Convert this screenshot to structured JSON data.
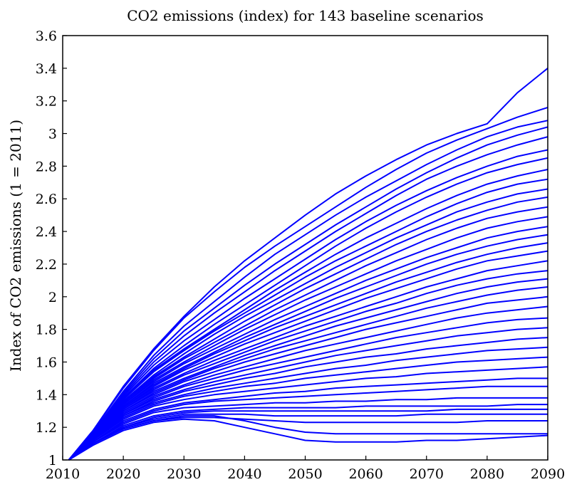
{
  "chart_data": {
    "type": "line",
    "title": "CO2 emissions (index) for 143 baseline scenarios",
    "xlabel": "",
    "ylabel": "Index of CO2 emissions (1 = 2011)",
    "xlim": [
      2010,
      2090
    ],
    "ylim": [
      1,
      3.6
    ],
    "x_ticks": [
      "2010",
      "2020",
      "2030",
      "2040",
      "2050",
      "2060",
      "2070",
      "2080",
      "2090"
    ],
    "y_ticks": [
      "1",
      "1.2",
      "1.4",
      "1.6",
      "1.8",
      "2",
      "2.2",
      "2.4",
      "2.6",
      "2.8",
      "3",
      "3.2",
      "3.4",
      "3.6"
    ],
    "series_color": "#0000ff",
    "series_count": 143,
    "grid": false,
    "x": [
      2011,
      2015,
      2020,
      2025,
      2030,
      2035,
      2040,
      2045,
      2050,
      2055,
      2060,
      2065,
      2070,
      2075,
      2080,
      2085,
      2090
    ],
    "series": [
      {
        "values": [
          1,
          1.18,
          1.45,
          1.68,
          1.88,
          2.06,
          2.22,
          2.36,
          2.5,
          2.63,
          2.74,
          2.84,
          2.93,
          3.0,
          3.06,
          3.25,
          3.4
        ]
      },
      {
        "values": [
          1,
          1.18,
          1.44,
          1.67,
          1.87,
          2.03,
          2.18,
          2.31,
          2.43,
          2.55,
          2.67,
          2.78,
          2.88,
          2.96,
          3.03,
          3.1,
          3.16
        ]
      },
      {
        "values": [
          1,
          1.17,
          1.42,
          1.64,
          1.82,
          1.97,
          2.12,
          2.26,
          2.38,
          2.5,
          2.61,
          2.71,
          2.81,
          2.9,
          2.98,
          3.04,
          3.08
        ]
      },
      {
        "values": [
          1,
          1.17,
          1.41,
          1.62,
          1.79,
          1.93,
          2.07,
          2.2,
          2.32,
          2.44,
          2.55,
          2.66,
          2.76,
          2.85,
          2.93,
          2.99,
          3.04
        ]
      },
      {
        "values": [
          1,
          1.17,
          1.4,
          1.6,
          1.76,
          1.9,
          2.03,
          2.16,
          2.28,
          2.4,
          2.51,
          2.62,
          2.72,
          2.8,
          2.87,
          2.93,
          2.98
        ]
      },
      {
        "values": [
          1,
          1.16,
          1.39,
          1.58,
          1.73,
          1.86,
          1.99,
          2.11,
          2.23,
          2.35,
          2.46,
          2.56,
          2.65,
          2.73,
          2.8,
          2.86,
          2.9
        ]
      },
      {
        "values": [
          1,
          1.16,
          1.38,
          1.56,
          1.7,
          1.83,
          1.95,
          2.07,
          2.19,
          2.31,
          2.42,
          2.52,
          2.61,
          2.69,
          2.76,
          2.81,
          2.85
        ]
      },
      {
        "values": [
          1,
          1.16,
          1.37,
          1.55,
          1.68,
          1.8,
          1.92,
          2.04,
          2.15,
          2.26,
          2.36,
          2.45,
          2.54,
          2.62,
          2.69,
          2.74,
          2.78
        ]
      },
      {
        "values": [
          1,
          1.16,
          1.37,
          1.54,
          1.67,
          1.79,
          1.9,
          2.01,
          2.12,
          2.22,
          2.31,
          2.4,
          2.49,
          2.57,
          2.64,
          2.69,
          2.72
        ]
      },
      {
        "values": [
          1,
          1.16,
          1.36,
          1.52,
          1.65,
          1.77,
          1.88,
          1.98,
          2.08,
          2.18,
          2.27,
          2.36,
          2.44,
          2.52,
          2.58,
          2.63,
          2.66
        ]
      },
      {
        "values": [
          1,
          1.15,
          1.35,
          1.51,
          1.63,
          1.74,
          1.85,
          1.95,
          2.05,
          2.14,
          2.23,
          2.32,
          2.4,
          2.47,
          2.53,
          2.58,
          2.61
        ]
      },
      {
        "values": [
          1,
          1.15,
          1.35,
          1.5,
          1.62,
          1.72,
          1.82,
          1.92,
          2.01,
          2.1,
          2.19,
          2.27,
          2.35,
          2.42,
          2.48,
          2.52,
          2.55
        ]
      },
      {
        "values": [
          1,
          1.15,
          1.34,
          1.49,
          1.6,
          1.7,
          1.8,
          1.89,
          1.98,
          2.06,
          2.14,
          2.22,
          2.29,
          2.36,
          2.42,
          2.46,
          2.49
        ]
      },
      {
        "values": [
          1,
          1.15,
          1.34,
          1.48,
          1.59,
          1.68,
          1.77,
          1.86,
          1.94,
          2.02,
          2.1,
          2.17,
          2.24,
          2.3,
          2.36,
          2.4,
          2.43
        ]
      },
      {
        "values": [
          1,
          1.15,
          1.33,
          1.47,
          1.57,
          1.66,
          1.75,
          1.83,
          1.91,
          1.99,
          2.06,
          2.13,
          2.2,
          2.26,
          2.31,
          2.35,
          2.38
        ]
      },
      {
        "values": [
          1,
          1.14,
          1.33,
          1.46,
          1.56,
          1.65,
          1.73,
          1.81,
          1.88,
          1.95,
          2.02,
          2.09,
          2.15,
          2.21,
          2.26,
          2.3,
          2.33
        ]
      },
      {
        "values": [
          1,
          1.14,
          1.32,
          1.45,
          1.55,
          1.63,
          1.71,
          1.78,
          1.85,
          1.92,
          1.99,
          2.05,
          2.11,
          2.17,
          2.22,
          2.25,
          2.28
        ]
      },
      {
        "values": [
          1,
          1.14,
          1.32,
          1.44,
          1.53,
          1.61,
          1.68,
          1.75,
          1.82,
          1.88,
          1.94,
          2.0,
          2.06,
          2.11,
          2.16,
          2.19,
          2.22
        ]
      },
      {
        "values": [
          1,
          1.14,
          1.31,
          1.43,
          1.52,
          1.59,
          1.66,
          1.73,
          1.79,
          1.85,
          1.91,
          1.96,
          2.02,
          2.07,
          2.11,
          2.14,
          2.16
        ]
      },
      {
        "values": [
          1,
          1.14,
          1.31,
          1.42,
          1.5,
          1.57,
          1.64,
          1.7,
          1.76,
          1.82,
          1.87,
          1.92,
          1.97,
          2.02,
          2.06,
          2.09,
          2.11
        ]
      },
      {
        "values": [
          1,
          1.13,
          1.3,
          1.41,
          1.49,
          1.56,
          1.62,
          1.68,
          1.73,
          1.78,
          1.83,
          1.88,
          1.93,
          1.97,
          2.01,
          2.04,
          2.06
        ]
      },
      {
        "values": [
          1,
          1.13,
          1.3,
          1.4,
          1.48,
          1.54,
          1.6,
          1.65,
          1.7,
          1.75,
          1.8,
          1.84,
          1.88,
          1.92,
          1.96,
          1.98,
          2.0
        ]
      },
      {
        "values": [
          1,
          1.13,
          1.29,
          1.39,
          1.46,
          1.52,
          1.57,
          1.62,
          1.67,
          1.71,
          1.75,
          1.79,
          1.83,
          1.87,
          1.9,
          1.92,
          1.94
        ]
      },
      {
        "values": [
          1,
          1.13,
          1.28,
          1.38,
          1.45,
          1.5,
          1.55,
          1.59,
          1.63,
          1.67,
          1.71,
          1.75,
          1.78,
          1.81,
          1.84,
          1.86,
          1.87
        ]
      },
      {
        "values": [
          1,
          1.13,
          1.28,
          1.37,
          1.43,
          1.48,
          1.52,
          1.56,
          1.6,
          1.64,
          1.67,
          1.7,
          1.73,
          1.76,
          1.78,
          1.8,
          1.81
        ]
      },
      {
        "values": [
          1,
          1.12,
          1.27,
          1.36,
          1.42,
          1.46,
          1.5,
          1.53,
          1.57,
          1.6,
          1.63,
          1.65,
          1.68,
          1.7,
          1.72,
          1.74,
          1.75
        ]
      },
      {
        "values": [
          1,
          1.12,
          1.27,
          1.35,
          1.4,
          1.44,
          1.47,
          1.5,
          1.53,
          1.56,
          1.58,
          1.61,
          1.63,
          1.65,
          1.67,
          1.68,
          1.69
        ]
      },
      {
        "values": [
          1,
          1.12,
          1.26,
          1.34,
          1.39,
          1.42,
          1.45,
          1.47,
          1.5,
          1.52,
          1.54,
          1.56,
          1.58,
          1.6,
          1.61,
          1.62,
          1.63
        ]
      },
      {
        "values": [
          1,
          1.12,
          1.25,
          1.33,
          1.37,
          1.4,
          1.42,
          1.44,
          1.46,
          1.48,
          1.5,
          1.51,
          1.53,
          1.54,
          1.55,
          1.56,
          1.57
        ]
      },
      {
        "values": [
          1,
          1.11,
          1.24,
          1.31,
          1.35,
          1.37,
          1.39,
          1.41,
          1.42,
          1.44,
          1.45,
          1.46,
          1.47,
          1.48,
          1.49,
          1.5,
          1.5
        ]
      },
      {
        "values": [
          1,
          1.11,
          1.23,
          1.3,
          1.34,
          1.36,
          1.37,
          1.38,
          1.39,
          1.4,
          1.41,
          1.42,
          1.43,
          1.44,
          1.45,
          1.45,
          1.45
        ]
      },
      {
        "values": [
          1,
          1.11,
          1.22,
          1.29,
          1.32,
          1.33,
          1.34,
          1.35,
          1.35,
          1.36,
          1.36,
          1.37,
          1.37,
          1.38,
          1.38,
          1.38,
          1.38
        ]
      },
      {
        "values": [
          1,
          1.1,
          1.21,
          1.27,
          1.3,
          1.31,
          1.32,
          1.32,
          1.32,
          1.32,
          1.33,
          1.33,
          1.33,
          1.33,
          1.33,
          1.34,
          1.34
        ]
      },
      {
        "values": [
          1,
          1.1,
          1.2,
          1.26,
          1.29,
          1.3,
          1.3,
          1.3,
          1.3,
          1.3,
          1.3,
          1.3,
          1.3,
          1.31,
          1.31,
          1.31,
          1.31
        ]
      },
      {
        "values": [
          1,
          1.1,
          1.2,
          1.25,
          1.28,
          1.28,
          1.28,
          1.27,
          1.27,
          1.27,
          1.27,
          1.27,
          1.28,
          1.28,
          1.28,
          1.28,
          1.28
        ]
      },
      {
        "values": [
          1,
          1.1,
          1.19,
          1.24,
          1.26,
          1.26,
          1.25,
          1.24,
          1.23,
          1.23,
          1.23,
          1.23,
          1.23,
          1.23,
          1.24,
          1.24,
          1.24
        ]
      },
      {
        "values": [
          1,
          1.1,
          1.19,
          1.24,
          1.27,
          1.27,
          1.24,
          1.2,
          1.17,
          1.16,
          1.16,
          1.16,
          1.16,
          1.16,
          1.16,
          1.16,
          1.16
        ]
      },
      {
        "values": [
          1,
          1.09,
          1.18,
          1.23,
          1.25,
          1.24,
          1.2,
          1.16,
          1.12,
          1.11,
          1.11,
          1.11,
          1.12,
          1.12,
          1.13,
          1.14,
          1.15
        ]
      }
    ]
  }
}
